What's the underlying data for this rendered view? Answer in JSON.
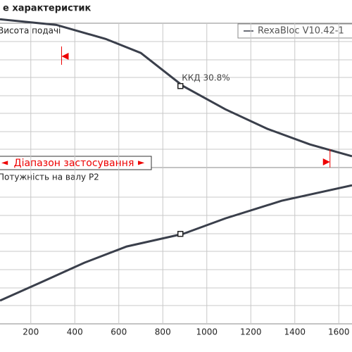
{
  "chart_data": [
    {
      "type": "line",
      "title": "е характеристик",
      "y_label": "Висота подачі",
      "series": [
        {
          "name": "RexaBloc V10.42-1",
          "color": "#3a3f4b",
          "x": [
            60,
            316,
            540,
            700,
            892,
            1084,
            1276,
            1468,
            1660
          ],
          "values": [
            8.24,
            7.93,
            7.15,
            6.37,
            4.53,
            3.24,
            2.15,
            1.29,
            0.63
          ]
        }
      ],
      "operating_point": [
        880,
        4.53
      ],
      "annotation": {
        "value": 30.8,
        "label": "ККД  30.8%"
      },
      "range": {
        "label": "Діапазон застосування",
        "x": [
          340,
          1560
        ]
      },
      "xlim": [
        60,
        1660
      ],
      "ylim": [
        0,
        9
      ]
    },
    {
      "type": "line",
      "y_label": "Потужність на валу  P2",
      "series": [
        {
          "color": "#3a3f4b",
          "x": [
            60,
            252,
            444,
            636,
            892,
            1084,
            1340,
            1660
          ],
          "values": [
            1.29,
            2.34,
            3.4,
            4.3,
            5.0,
            5.86,
            6.84,
            7.7
          ]
        }
      ],
      "operating_point": [
        880,
        5.0
      ],
      "xlim": [
        60,
        1660
      ],
      "ylim": [
        0,
        9
      ],
      "xticks": [
        200,
        400,
        600,
        800,
        1000,
        1200,
        1400,
        1600
      ],
      "grid": true
    }
  ]
}
